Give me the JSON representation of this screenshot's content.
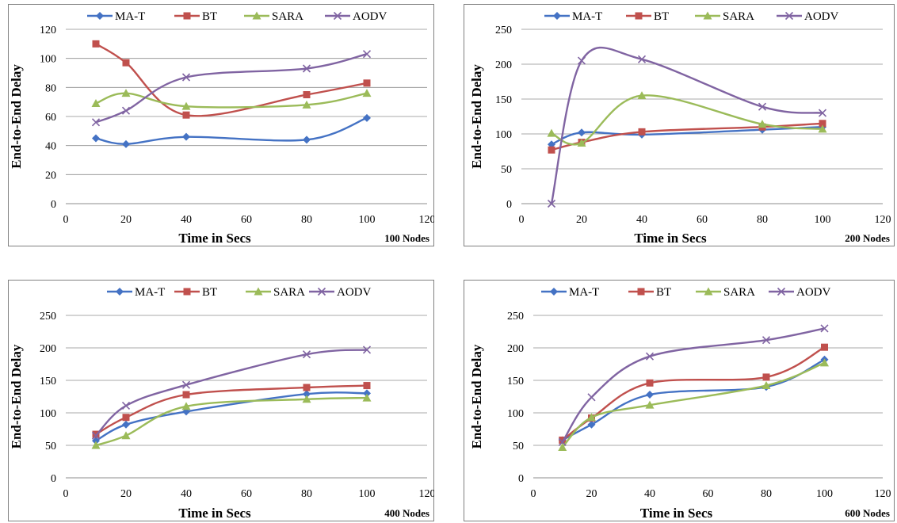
{
  "chart_data": [
    {
      "type": "line",
      "xlabel": "Time in Secs",
      "ylabel": "End-to-End Delay",
      "annotation": "100 Nodes",
      "xlim": [
        0,
        120
      ],
      "ylim": [
        0,
        120
      ],
      "xticks": [
        0,
        20,
        40,
        60,
        80,
        100,
        120
      ],
      "yticks": [
        0,
        20,
        40,
        60,
        80,
        100,
        120
      ],
      "x": [
        10,
        20,
        40,
        80,
        100
      ],
      "grid": true,
      "legend": "top",
      "series": [
        {
          "name": "MA-T",
          "values": [
            45,
            41,
            46,
            44,
            59
          ],
          "color": "#4472c4",
          "marker": "diamond"
        },
        {
          "name": "BT",
          "values": [
            110,
            97,
            61,
            75,
            83
          ],
          "color": "#c0504d",
          "marker": "square"
        },
        {
          "name": "SARA",
          "values": [
            69,
            76,
            67,
            68,
            76
          ],
          "color": "#9bbb59",
          "marker": "triangle"
        },
        {
          "name": "AODV",
          "values": [
            56,
            64,
            87,
            93,
            103
          ],
          "color": "#8064a2",
          "marker": "x"
        }
      ]
    },
    {
      "type": "line",
      "xlabel": "Time in Secs",
      "ylabel": "End-to-End Delay",
      "annotation": "200 Nodes",
      "xlim": [
        0,
        120
      ],
      "ylim": [
        0,
        250
      ],
      "xticks": [
        0,
        20,
        40,
        60,
        80,
        100,
        120
      ],
      "yticks": [
        0,
        50,
        100,
        150,
        200,
        250
      ],
      "x": [
        10,
        20,
        40,
        80,
        100
      ],
      "grid": true,
      "legend": "top",
      "series": [
        {
          "name": "MA-T",
          "values": [
            85,
            102,
            99,
            106,
            110
          ],
          "color": "#4472c4",
          "marker": "diamond"
        },
        {
          "name": "BT",
          "values": [
            77,
            88,
            103,
            110,
            115
          ],
          "color": "#c0504d",
          "marker": "square"
        },
        {
          "name": "SARA",
          "values": [
            101,
            87,
            155,
            114,
            107
          ],
          "color": "#9bbb59",
          "marker": "triangle"
        },
        {
          "name": "AODV",
          "values": [
            0,
            205,
            207,
            139,
            130
          ],
          "color": "#8064a2",
          "marker": "x"
        }
      ]
    },
    {
      "type": "line",
      "xlabel": "Time in Secs",
      "ylabel": "End-to-End Delay",
      "annotation": "400 Nodes",
      "xlim": [
        0,
        120
      ],
      "ylim": [
        0,
        250
      ],
      "xticks": [
        0,
        20,
        40,
        60,
        80,
        100,
        120
      ],
      "yticks": [
        0,
        50,
        100,
        150,
        200,
        250
      ],
      "x": [
        10,
        20,
        40,
        80,
        100
      ],
      "grid": true,
      "legend": "top",
      "series": [
        {
          "name": "MA-T",
          "values": [
            57,
            82,
            102,
            129,
            130
          ],
          "color": "#4472c4",
          "marker": "diamond"
        },
        {
          "name": "BT",
          "values": [
            67,
            93,
            128,
            139,
            142
          ],
          "color": "#c0504d",
          "marker": "square"
        },
        {
          "name": "SARA",
          "values": [
            50,
            65,
            110,
            121,
            123
          ],
          "color": "#9bbb59",
          "marker": "triangle"
        },
        {
          "name": "AODV",
          "values": [
            65,
            111,
            143,
            190,
            197
          ],
          "color": "#8064a2",
          "marker": "x"
        }
      ]
    },
    {
      "type": "line",
      "xlabel": "Time in Secs",
      "ylabel": "End-to-End Delay",
      "annotation": "600 Nodes",
      "xlim": [
        0,
        120
      ],
      "ylim": [
        0,
        250
      ],
      "xticks": [
        0,
        20,
        40,
        60,
        80,
        100,
        120
      ],
      "yticks": [
        0,
        50,
        100,
        150,
        200,
        250
      ],
      "x": [
        10,
        20,
        40,
        80,
        100
      ],
      "grid": true,
      "legend": "top",
      "series": [
        {
          "name": "MA-T",
          "values": [
            58,
            82,
            128,
            140,
            182
          ],
          "color": "#4472c4",
          "marker": "diamond"
        },
        {
          "name": "BT",
          "values": [
            58,
            92,
            146,
            155,
            201
          ],
          "color": "#c0504d",
          "marker": "square"
        },
        {
          "name": "SARA",
          "values": [
            47,
            93,
            112,
            142,
            177
          ],
          "color": "#9bbb59",
          "marker": "triangle"
        },
        {
          "name": "AODV",
          "values": [
            55,
            124,
            187,
            212,
            230
          ],
          "color": "#8064a2",
          "marker": "x"
        }
      ]
    }
  ]
}
